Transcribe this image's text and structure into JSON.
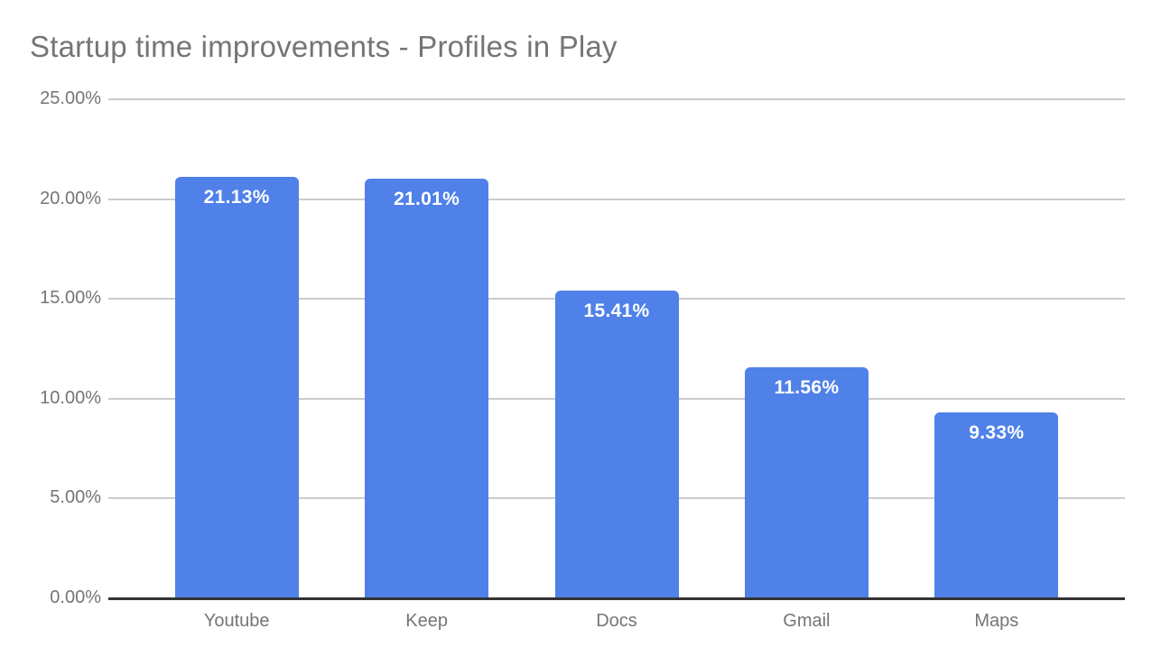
{
  "chart_data": {
    "type": "bar",
    "title": "Startup time improvements - Profiles in Play",
    "categories": [
      "Youtube",
      "Keep",
      "Docs",
      "Gmail",
      "Maps"
    ],
    "values": [
      21.13,
      21.01,
      15.41,
      11.56,
      9.33
    ],
    "value_labels": [
      "21.13%",
      "21.01%",
      "15.41%",
      "11.56%",
      "9.33%"
    ],
    "xlabel": "",
    "ylabel": "",
    "ylim": [
      0,
      25
    ],
    "y_tick_step": 5,
    "y_tick_labels": [
      "0.00%",
      "5.00%",
      "10.00%",
      "15.00%",
      "20.00%",
      "25.00%"
    ],
    "grid": true,
    "legend": "none",
    "colors": {
      "bar": "#4f81e8",
      "value_label": "#ffffff",
      "title": "#757575",
      "axis_text": "#757575",
      "gridline": "#cccccc",
      "baseline": "#333333",
      "background": "#ffffff"
    }
  }
}
